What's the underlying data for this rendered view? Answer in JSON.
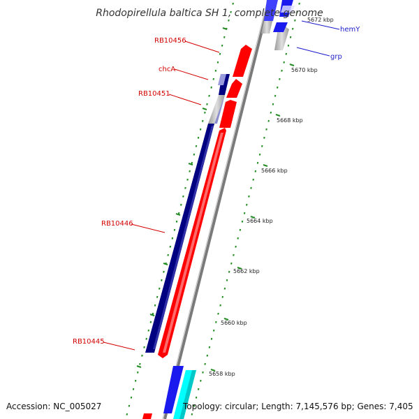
{
  "title": "Rhodopirellula baltica SH 1, complete genome",
  "footer": {
    "accession": "Accession: NC_005027",
    "topology": "Topology: circular; Length: 7,145,576 bp; Genes: 7,405"
  },
  "scale_labels": [
    "5672 kbp",
    "5670 kbp",
    "5668 kbp",
    "5666 kbp",
    "5664 kbp",
    "5662 kbp",
    "5660 kbp",
    "5658 kbp"
  ],
  "genes": [
    {
      "id": "RB10456",
      "label": "RB10456",
      "strand": "forward",
      "color": "#ff0000"
    },
    {
      "id": "chcA",
      "label": "chcA",
      "strand": "reverse",
      "color": "#000080"
    },
    {
      "id": "RB10451",
      "label": "RB10451",
      "strand": "forward",
      "color": "#ff0000"
    },
    {
      "id": "RB10446",
      "label": "RB10446",
      "strand": "reverse",
      "color": "#000080"
    },
    {
      "id": "RB10445",
      "label": "RB10445",
      "strand": "forward",
      "color": "#ff0000"
    },
    {
      "id": "hemY",
      "label": "hemY",
      "strand": "forward",
      "color": "#0000ff"
    },
    {
      "id": "grp",
      "label": "grp",
      "strand": "forward",
      "color": "#0000ff"
    }
  ],
  "colors": {
    "forward_cds": "#ff0000",
    "reverse_cds": "#000080",
    "other_cds": "#0000ff",
    "cyan_cds": "#00ffff",
    "pseudo": "#c8c8c8",
    "backbone": "#808080",
    "ticks": "#228b22",
    "label_red": "#d40000",
    "label_blue": "#1a1acc"
  }
}
